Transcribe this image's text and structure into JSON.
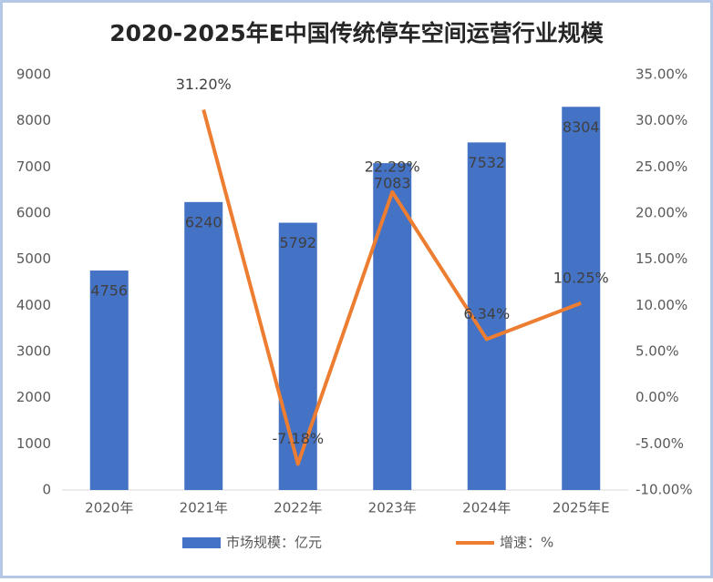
{
  "chart_data": {
    "type": "bar_line",
    "title": "2020-2025年E中国传统停车空间运营行业规模",
    "categories": [
      "2020年",
      "2021年",
      "2022年",
      "2023年",
      "2024年",
      "2025年E"
    ],
    "series": [
      {
        "name": "市场规模：亿元",
        "type": "bar",
        "color": "#4472c4",
        "values": [
          4756,
          6240,
          5792,
          7083,
          7532,
          8304
        ]
      },
      {
        "name": "增速：%",
        "type": "line",
        "axis": "y2",
        "color": "#ed7d31",
        "values": [
          null,
          31.2,
          -7.18,
          22.29,
          6.34,
          10.25
        ],
        "value_labels": [
          null,
          "31.20%",
          "-7.18%",
          "22.29%",
          "6.34%",
          "10.25%"
        ]
      }
    ],
    "ylim": [
      0,
      9000
    ],
    "yticks": [
      0,
      1000,
      2000,
      3000,
      4000,
      5000,
      6000,
      7000,
      8000,
      9000
    ],
    "y2lim": [
      -10,
      35
    ],
    "y2ticks": [
      {
        "value": -10,
        "label": "-10.00%"
      },
      {
        "value": -5,
        "label": "-5.00%"
      },
      {
        "value": 0,
        "label": "0.00%"
      },
      {
        "value": 5,
        "label": "5.00%"
      },
      {
        "value": 10,
        "label": "10.00%"
      },
      {
        "value": 15,
        "label": "15.00%"
      },
      {
        "value": 20,
        "label": "20.00%"
      },
      {
        "value": 25,
        "label": "25.00%"
      },
      {
        "value": 30,
        "label": "30.00%"
      },
      {
        "value": 35,
        "label": "35.00%"
      }
    ],
    "legend": "bottom"
  }
}
